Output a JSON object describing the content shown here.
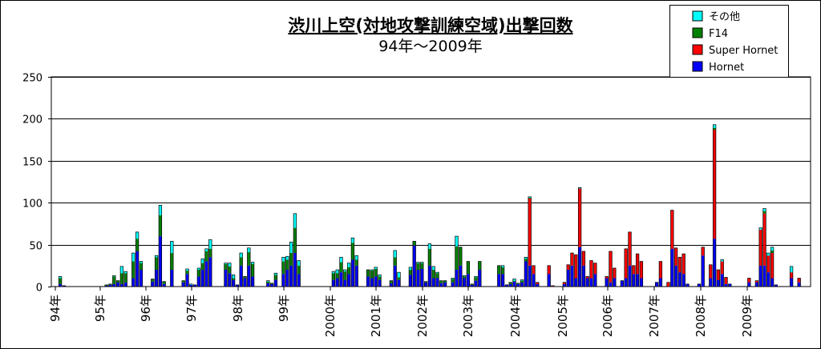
{
  "chart_data": {
    "type": "bar",
    "stacked": true,
    "title": "渋川上空(対地攻撃訓練空域)出撃回数",
    "subtitle": "94年～2009年",
    "ylim": [
      0,
      250
    ],
    "yticks": [
      0,
      50,
      100,
      150,
      200,
      250
    ],
    "grid": true,
    "legend_placement": "top-right",
    "x_tick_labels": [
      "94年",
      "95年",
      "96年",
      "97年",
      "98年",
      "99年",
      "2000年",
      "2001年",
      "2002年",
      "2003年",
      "2004年",
      "2005年",
      "2006年",
      "2007年",
      "2008年",
      "2009年"
    ],
    "series": [
      {
        "name": "Hornet",
        "color": "#0000ff"
      },
      {
        "name": "Super Hornet",
        "color": "#ff0000"
      },
      {
        "name": "F14",
        "color": "#008000"
      },
      {
        "name": "その他",
        "color": "#00ffff"
      }
    ],
    "months": [
      [
        0,
        0,
        0,
        0
      ],
      [
        3,
        0,
        7,
        2
      ],
      [
        1,
        0,
        0,
        0
      ],
      [
        0,
        0,
        0,
        0
      ],
      [
        0,
        0,
        0,
        0
      ],
      [
        0,
        0,
        0,
        0
      ],
      [
        0,
        0,
        0,
        0
      ],
      [
        0,
        0,
        0,
        0
      ],
      [
        0,
        0,
        0,
        0
      ],
      [
        0,
        0,
        0,
        0
      ],
      [
        0,
        0,
        0,
        0
      ],
      [
        0,
        0,
        0,
        0
      ],
      [
        0,
        0,
        0,
        0
      ],
      [
        1,
        0,
        1,
        0
      ],
      [
        2,
        0,
        1,
        0
      ],
      [
        3,
        0,
        9,
        1
      ],
      [
        5,
        0,
        2,
        0
      ],
      [
        3,
        0,
        13,
        8
      ],
      [
        5,
        0,
        11,
        2
      ],
      [
        0,
        0,
        0,
        0
      ],
      [
        10,
        0,
        20,
        10
      ],
      [
        42,
        0,
        15,
        8
      ],
      [
        20,
        0,
        8,
        2
      ],
      [
        0,
        0,
        0,
        0
      ],
      [
        0,
        0,
        0,
        0
      ],
      [
        6,
        0,
        3,
        0
      ],
      [
        20,
        0,
        15,
        2
      ],
      [
        60,
        0,
        25,
        12
      ],
      [
        3,
        0,
        3,
        0
      ],
      [
        0,
        0,
        0,
        0
      ],
      [
        20,
        0,
        20,
        14
      ],
      [
        0,
        0,
        0,
        0
      ],
      [
        0,
        0,
        0,
        0
      ],
      [
        5,
        0,
        2,
        0
      ],
      [
        15,
        0,
        4,
        2
      ],
      [
        2,
        0,
        0,
        1
      ],
      [
        2,
        0,
        0,
        0
      ],
      [
        12,
        0,
        8,
        2
      ],
      [
        20,
        0,
        8,
        5
      ],
      [
        30,
        0,
        12,
        3
      ],
      [
        35,
        0,
        10,
        11
      ],
      [
        0,
        0,
        0,
        0
      ],
      [
        0,
        0,
        0,
        0
      ],
      [
        0,
        0,
        0,
        0
      ],
      [
        20,
        0,
        7,
        1
      ],
      [
        16,
        0,
        8,
        4
      ],
      [
        8,
        0,
        2,
        4
      ],
      [
        2,
        0,
        0,
        0
      ],
      [
        25,
        0,
        10,
        5
      ],
      [
        10,
        0,
        2,
        0
      ],
      [
        25,
        0,
        16,
        5
      ],
      [
        12,
        0,
        15,
        2
      ],
      [
        0,
        0,
        0,
        0
      ],
      [
        0,
        0,
        0,
        0
      ],
      [
        0,
        0,
        0,
        0
      ],
      [
        4,
        0,
        2,
        1
      ],
      [
        3,
        0,
        1,
        0
      ],
      [
        8,
        0,
        6,
        2
      ],
      [
        0,
        0,
        0,
        0
      ],
      [
        15,
        0,
        15,
        5
      ],
      [
        20,
        0,
        12,
        4
      ],
      [
        25,
        0,
        15,
        13
      ],
      [
        40,
        0,
        30,
        17
      ],
      [
        15,
        0,
        10,
        6
      ],
      [
        0,
        0,
        0,
        0
      ],
      [
        0,
        0,
        0,
        0
      ],
      [
        0,
        0,
        0,
        0
      ],
      [
        0,
        0,
        0,
        0
      ],
      [
        0,
        0,
        0,
        0
      ],
      [
        0,
        0,
        0,
        0
      ],
      [
        0,
        0,
        0,
        0
      ],
      [
        0,
        0,
        0,
        0
      ],
      [
        8,
        0,
        8,
        2
      ],
      [
        10,
        0,
        6,
        4
      ],
      [
        17,
        0,
        12,
        6
      ],
      [
        8,
        0,
        10,
        2
      ],
      [
        15,
        0,
        8,
        5
      ],
      [
        32,
        0,
        20,
        6
      ],
      [
        25,
        0,
        7,
        5
      ],
      [
        0,
        0,
        0,
        0
      ],
      [
        0,
        0,
        0,
        0
      ],
      [
        12,
        0,
        8,
        0
      ],
      [
        10,
        0,
        9,
        1
      ],
      [
        12,
        0,
        9,
        2
      ],
      [
        8,
        0,
        4,
        2
      ],
      [
        0,
        0,
        0,
        0
      ],
      [
        0,
        0,
        0,
        0
      ],
      [
        4,
        0,
        3,
        0
      ],
      [
        25,
        0,
        10,
        8
      ],
      [
        8,
        0,
        3,
        6
      ],
      [
        0,
        0,
        0,
        0
      ],
      [
        0,
        0,
        0,
        0
      ],
      [
        14,
        0,
        6,
        3
      ],
      [
        49,
        0,
        5,
        0
      ],
      [
        20,
        0,
        8,
        1
      ],
      [
        21,
        0,
        7,
        1
      ],
      [
        5,
        0,
        1,
        0
      ],
      [
        25,
        0,
        20,
        6
      ],
      [
        10,
        0,
        10,
        4
      ],
      [
        10,
        0,
        6,
        1
      ],
      [
        4,
        0,
        3,
        0
      ],
      [
        5,
        0,
        2,
        0
      ],
      [
        0,
        0,
        0,
        0
      ],
      [
        5,
        0,
        4,
        1
      ],
      [
        20,
        0,
        28,
        12
      ],
      [
        25,
        0,
        22,
        0
      ],
      [
        10,
        0,
        2,
        1
      ],
      [
        15,
        0,
        15,
        0
      ],
      [
        2,
        0,
        1,
        0
      ],
      [
        7,
        0,
        4,
        1
      ],
      [
        20,
        0,
        10,
        0
      ],
      [
        0,
        0,
        0,
        0
      ],
      [
        0,
        0,
        0,
        0
      ],
      [
        0,
        0,
        0,
        0
      ],
      [
        0,
        0,
        0,
        0
      ],
      [
        15,
        0,
        10,
        0
      ],
      [
        15,
        0,
        8,
        2
      ],
      [
        2,
        0,
        0,
        0
      ],
      [
        3,
        0,
        2,
        0
      ],
      [
        6,
        0,
        1,
        2
      ],
      [
        3,
        0,
        1,
        0
      ],
      [
        5,
        0,
        2,
        1
      ],
      [
        30,
        0,
        3,
        2
      ],
      [
        25,
        80,
        1,
        1
      ],
      [
        15,
        10,
        0,
        0
      ],
      [
        3,
        2,
        0,
        0
      ],
      [
        0,
        0,
        0,
        0
      ],
      [
        0,
        0,
        0,
        0
      ],
      [
        15,
        10,
        0,
        0
      ],
      [
        0,
        1,
        0,
        0
      ],
      [
        0,
        0,
        0,
        0
      ],
      [
        0,
        0,
        0,
        0
      ],
      [
        3,
        2,
        0,
        0
      ],
      [
        20,
        6,
        0,
        0
      ],
      [
        25,
        15,
        0,
        0
      ],
      [
        10,
        28,
        0,
        0
      ],
      [
        47,
        70,
        0,
        1
      ],
      [
        25,
        17,
        0,
        0
      ],
      [
        10,
        2,
        0,
        0
      ],
      [
        10,
        21,
        0,
        0
      ],
      [
        15,
        13,
        0,
        0
      ],
      [
        0,
        0,
        0,
        0
      ],
      [
        0,
        0,
        0,
        0
      ],
      [
        10,
        2,
        0,
        0
      ],
      [
        5,
        37,
        0,
        0
      ],
      [
        10,
        12,
        0,
        0
      ],
      [
        0,
        0,
        0,
        0
      ],
      [
        7,
        0,
        0,
        0
      ],
      [
        10,
        35,
        0,
        0
      ],
      [
        25,
        40,
        0,
        0
      ],
      [
        15,
        10,
        0,
        0
      ],
      [
        15,
        24,
        0,
        0
      ],
      [
        10,
        20,
        0,
        0
      ],
      [
        0,
        0,
        0,
        0
      ],
      [
        0,
        0,
        0,
        0
      ],
      [
        0,
        0,
        0,
        0
      ],
      [
        5,
        0,
        0,
        0
      ],
      [
        10,
        20,
        0,
        0
      ],
      [
        0,
        0,
        0,
        0
      ],
      [
        0,
        5,
        0,
        0
      ],
      [
        45,
        46,
        0,
        0
      ],
      [
        25,
        21,
        0,
        0
      ],
      [
        17,
        18,
        0,
        0
      ],
      [
        15,
        24,
        0,
        0
      ],
      [
        3,
        0,
        0,
        0
      ],
      [
        0,
        0,
        0,
        0
      ],
      [
        0,
        0,
        0,
        0
      ],
      [
        3,
        0,
        0,
        0
      ],
      [
        37,
        10,
        0,
        0
      ],
      [
        0,
        0,
        0,
        0
      ],
      [
        10,
        16,
        0,
        0
      ],
      [
        57,
        130,
        2,
        4
      ],
      [
        8,
        12,
        0,
        0
      ],
      [
        15,
        15,
        0,
        2
      ],
      [
        3,
        8,
        0,
        0
      ],
      [
        3,
        0,
        0,
        0
      ],
      [
        0,
        0,
        0,
        0
      ],
      [
        0,
        0,
        0,
        0
      ],
      [
        0,
        0,
        0,
        0
      ],
      [
        0,
        0,
        0,
        0
      ],
      [
        5,
        5,
        0,
        0
      ],
      [
        0,
        0,
        0,
        0
      ],
      [
        5,
        2,
        0,
        0
      ],
      [
        25,
        43,
        0,
        2
      ],
      [
        25,
        62,
        3,
        3
      ],
      [
        17,
        20,
        0,
        3
      ],
      [
        10,
        30,
        3,
        4
      ],
      [
        2,
        0,
        0,
        0
      ],
      [
        0,
        0,
        0,
        0
      ],
      [
        0,
        0,
        0,
        0
      ],
      [
        0,
        0,
        0,
        0
      ],
      [
        10,
        7,
        0,
        7
      ],
      [
        0,
        0,
        0,
        0
      ],
      [
        5,
        5,
        0,
        0
      ]
    ]
  }
}
